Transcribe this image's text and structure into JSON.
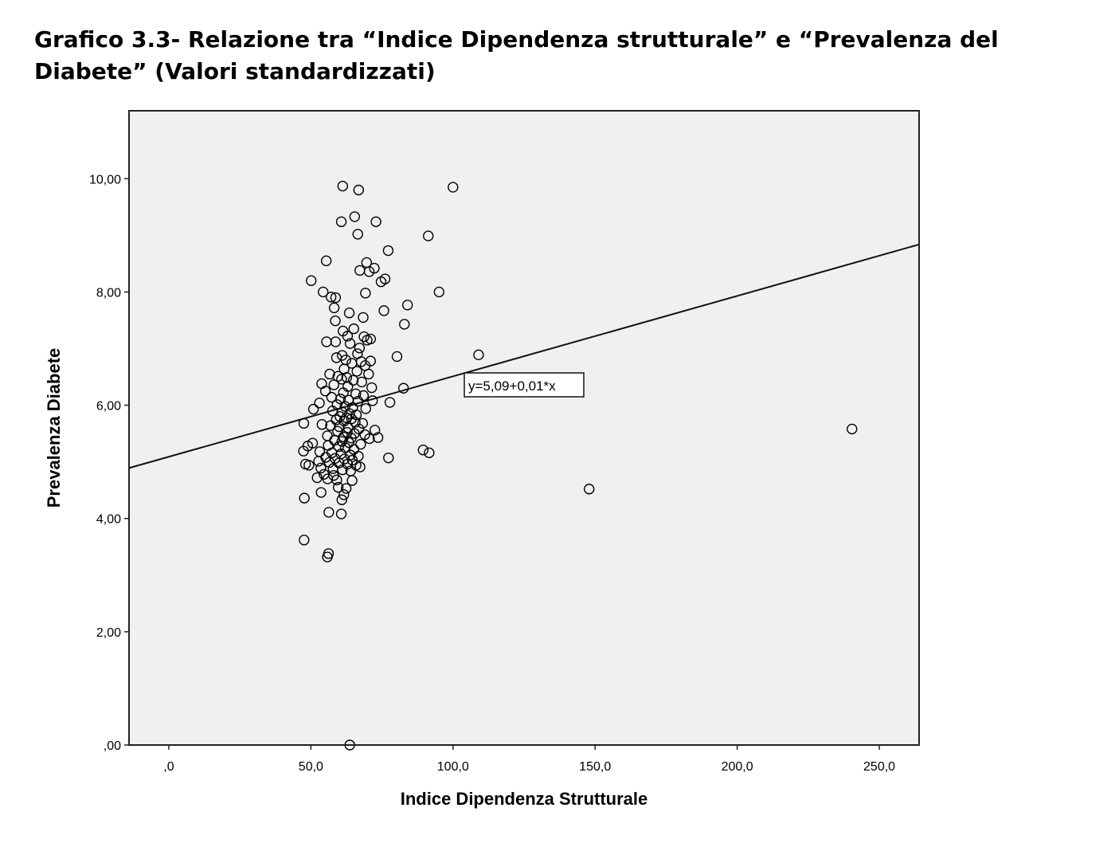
{
  "title": "Grafico 3.3- Relazione tra “Indice Dipendenza strutturale” e “Prevalenza del Diabete” (Valori standardizzati)",
  "chart_data": {
    "type": "scatter",
    "xlabel": "Indice Dipendenza Strutturale",
    "ylabel": "Prevalenza Diabete",
    "xlim": [
      -14,
      264
    ],
    "ylim": [
      0,
      11.2
    ],
    "x_ticks": [
      0,
      50,
      100,
      150,
      200,
      250
    ],
    "x_tick_labels": [
      ",0",
      "50,0",
      "100,0",
      "150,0",
      "200,0",
      "250,0"
    ],
    "y_ticks": [
      0,
      2,
      4,
      6,
      8,
      10
    ],
    "y_tick_labels": [
      ",00",
      "2,00",
      "4,00",
      "6,00",
      "8,00",
      "10,00"
    ],
    "background_color": "#f0f0f0",
    "point_color": "#000000",
    "fit_line": {
      "intercept": 5.09,
      "slope": 0.0142,
      "label": "y=5,09+0,01*x"
    },
    "points": [
      [
        61.2,
        9.87
      ],
      [
        66.8,
        9.8
      ],
      [
        100.0,
        9.85
      ],
      [
        60.7,
        9.24
      ],
      [
        65.4,
        9.33
      ],
      [
        72.9,
        9.24
      ],
      [
        66.5,
        9.02
      ],
      [
        91.3,
        8.99
      ],
      [
        77.2,
        8.73
      ],
      [
        55.4,
        8.55
      ],
      [
        69.6,
        8.52
      ],
      [
        72.3,
        8.42
      ],
      [
        67.2,
        8.38
      ],
      [
        70.5,
        8.36
      ],
      [
        76.1,
        8.23
      ],
      [
        74.7,
        8.18
      ],
      [
        50.1,
        8.2
      ],
      [
        54.3,
        8.0
      ],
      [
        69.2,
        7.98
      ],
      [
        95.1,
        8.0
      ],
      [
        57.1,
        7.91
      ],
      [
        58.7,
        7.9
      ],
      [
        84.0,
        7.77
      ],
      [
        58.2,
        7.72
      ],
      [
        75.7,
        7.67
      ],
      [
        63.5,
        7.63
      ],
      [
        68.4,
        7.55
      ],
      [
        58.6,
        7.49
      ],
      [
        82.9,
        7.43
      ],
      [
        65.1,
        7.35
      ],
      [
        61.3,
        7.31
      ],
      [
        62.9,
        7.22
      ],
      [
        68.7,
        7.21
      ],
      [
        69.8,
        7.15
      ],
      [
        71.0,
        7.17
      ],
      [
        55.5,
        7.12
      ],
      [
        58.7,
        7.12
      ],
      [
        63.8,
        7.09
      ],
      [
        67.1,
        7.01
      ],
      [
        61.0,
        6.88
      ],
      [
        66.4,
        6.91
      ],
      [
        80.3,
        6.86
      ],
      [
        109.0,
        6.89
      ],
      [
        59.0,
        6.84
      ],
      [
        62.3,
        6.8
      ],
      [
        67.7,
        6.77
      ],
      [
        71.0,
        6.78
      ],
      [
        64.4,
        6.74
      ],
      [
        69.1,
        6.7
      ],
      [
        61.7,
        6.64
      ],
      [
        66.2,
        6.6
      ],
      [
        70.3,
        6.55
      ],
      [
        56.6,
        6.55
      ],
      [
        59.5,
        6.51
      ],
      [
        62.6,
        6.49
      ],
      [
        60.8,
        6.46
      ],
      [
        64.9,
        6.44
      ],
      [
        67.9,
        6.41
      ],
      [
        53.8,
        6.38
      ],
      [
        58.1,
        6.36
      ],
      [
        63.0,
        6.33
      ],
      [
        71.4,
        6.31
      ],
      [
        82.6,
        6.3
      ],
      [
        55.1,
        6.25
      ],
      [
        61.4,
        6.22
      ],
      [
        65.8,
        6.2
      ],
      [
        68.5,
        6.17
      ],
      [
        57.3,
        6.14
      ],
      [
        60.4,
        6.11
      ],
      [
        63.2,
        6.09
      ],
      [
        66.6,
        6.07
      ],
      [
        71.7,
        6.08
      ],
      [
        77.8,
        6.05
      ],
      [
        53.0,
        6.04
      ],
      [
        59.2,
        6.01
      ],
      [
        62.0,
        5.98
      ],
      [
        64.7,
        5.96
      ],
      [
        69.3,
        5.94
      ],
      [
        50.9,
        5.93
      ],
      [
        57.6,
        5.9
      ],
      [
        61.0,
        5.88
      ],
      [
        63.6,
        5.85
      ],
      [
        66.0,
        5.83
      ],
      [
        60.2,
        5.8
      ],
      [
        62.5,
        5.78
      ],
      [
        64.3,
        5.76
      ],
      [
        58.9,
        5.74
      ],
      [
        61.7,
        5.72
      ],
      [
        65.6,
        5.7
      ],
      [
        68.2,
        5.68
      ],
      [
        47.5,
        5.68
      ],
      [
        53.9,
        5.66
      ],
      [
        56.9,
        5.64
      ],
      [
        60.0,
        5.62
      ],
      [
        63.1,
        5.6
      ],
      [
        66.9,
        5.58
      ],
      [
        72.5,
        5.56
      ],
      [
        59.4,
        5.54
      ],
      [
        62.8,
        5.52
      ],
      [
        65.3,
        5.5
      ],
      [
        69.0,
        5.48
      ],
      [
        55.8,
        5.46
      ],
      [
        61.5,
        5.44
      ],
      [
        64.2,
        5.42
      ],
      [
        73.6,
        5.43
      ],
      [
        70.6,
        5.41
      ],
      [
        58.3,
        5.38
      ],
      [
        60.9,
        5.36
      ],
      [
        50.6,
        5.33
      ],
      [
        63.4,
        5.34
      ],
      [
        67.5,
        5.31
      ],
      [
        56.1,
        5.29
      ],
      [
        59.8,
        5.27
      ],
      [
        62.1,
        5.25
      ],
      [
        48.9,
        5.28
      ],
      [
        65.1,
        5.22
      ],
      [
        89.5,
        5.21
      ],
      [
        47.4,
        5.19
      ],
      [
        53.1,
        5.18
      ],
      [
        57.4,
        5.16
      ],
      [
        60.6,
        5.14
      ],
      [
        91.6,
        5.16
      ],
      [
        63.9,
        5.12
      ],
      [
        66.7,
        5.1
      ],
      [
        55.2,
        5.08
      ],
      [
        58.5,
        5.06
      ],
      [
        61.8,
        5.05
      ],
      [
        77.3,
        5.07
      ],
      [
        64.6,
        5.03
      ],
      [
        52.7,
        5.01
      ],
      [
        56.5,
        4.99
      ],
      [
        59.9,
        4.98
      ],
      [
        62.9,
        4.96
      ],
      [
        48.1,
        4.96
      ],
      [
        49.3,
        4.94
      ],
      [
        65.9,
        4.94
      ],
      [
        67.3,
        4.91
      ],
      [
        53.5,
        4.89
      ],
      [
        57.8,
        4.88
      ],
      [
        61.1,
        4.86
      ],
      [
        64.0,
        4.84
      ],
      [
        54.6,
        4.78
      ],
      [
        58.0,
        4.76
      ],
      [
        52.2,
        4.72
      ],
      [
        55.9,
        4.7
      ],
      [
        59.1,
        4.68
      ],
      [
        64.5,
        4.67
      ],
      [
        59.6,
        4.55
      ],
      [
        62.4,
        4.53
      ],
      [
        147.9,
        4.52
      ],
      [
        53.6,
        4.46
      ],
      [
        61.6,
        4.42
      ],
      [
        47.7,
        4.36
      ],
      [
        60.9,
        4.33
      ],
      [
        56.3,
        4.11
      ],
      [
        60.7,
        4.08
      ],
      [
        47.6,
        3.62
      ],
      [
        56.2,
        3.38
      ],
      [
        55.8,
        3.32
      ],
      [
        63.7,
        0.0
      ],
      [
        240.4,
        5.58
      ]
    ]
  }
}
